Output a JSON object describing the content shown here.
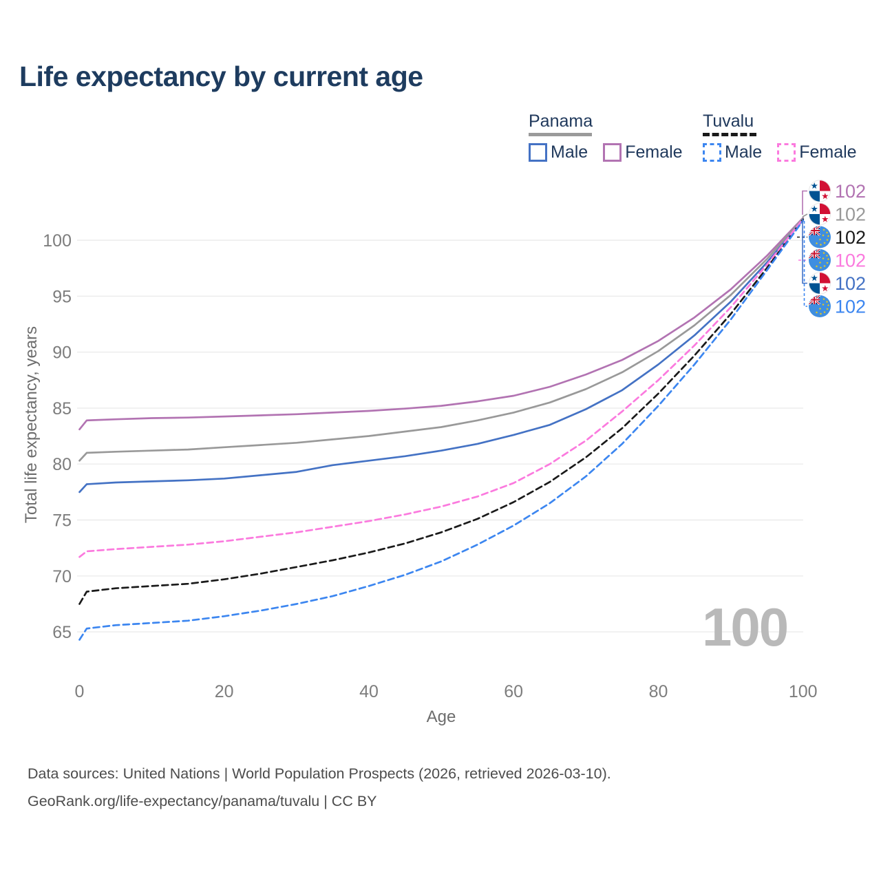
{
  "title": "Life expectancy by current age",
  "legend": {
    "groups": [
      {
        "country": "Panama",
        "line_style": "solid",
        "underline_color": "#9a9a9a",
        "items": [
          {
            "label": "Male",
            "color": "#4472c4"
          },
          {
            "label": "Female",
            "color": "#b273b2"
          }
        ]
      },
      {
        "country": "Tuvalu",
        "line_style": "dashed",
        "underline_color": "#1a1a1a",
        "items": [
          {
            "label": "Male",
            "color": "#3c86f0"
          },
          {
            "label": "Female",
            "color": "#fb7ade"
          }
        ]
      }
    ]
  },
  "chart_data": {
    "type": "line",
    "title": "Life expectancy by current age",
    "xlabel": "Age",
    "ylabel": "Total life expectancy, years",
    "xlim": [
      0,
      100
    ],
    "ylim": [
      63,
      103.5
    ],
    "x_ticks": [
      0,
      20,
      40,
      60,
      80,
      100
    ],
    "y_ticks": [
      65,
      70,
      75,
      80,
      85,
      90,
      95,
      100
    ],
    "grid": "horizontal-only",
    "legend_position": "top-right",
    "ages": [
      0,
      1,
      5,
      10,
      15,
      20,
      25,
      30,
      35,
      40,
      45,
      50,
      55,
      60,
      65,
      70,
      75,
      80,
      85,
      90,
      95,
      100
    ],
    "series": [
      {
        "name": "Panama — Female",
        "country": "Panama",
        "sex": "Female",
        "color": "#b273b2",
        "dashed": false,
        "flag": "panama",
        "end_label": "102",
        "label_row": 0,
        "values": [
          83.1,
          83.9,
          84.0,
          84.1,
          84.15,
          84.25,
          84.35,
          84.45,
          84.6,
          84.75,
          84.95,
          85.2,
          85.6,
          86.1,
          86.9,
          88.0,
          89.3,
          91.0,
          93.1,
          95.6,
          98.6,
          102.0
        ]
      },
      {
        "name": "Panama — Both sexes",
        "country": "Panama",
        "sex": "Both",
        "color": "#999999",
        "dashed": false,
        "flag": "panama",
        "end_label": "102",
        "label_row": 1,
        "values": [
          80.3,
          81.0,
          81.1,
          81.2,
          81.3,
          81.5,
          81.7,
          81.9,
          82.2,
          82.5,
          82.9,
          83.3,
          83.9,
          84.6,
          85.5,
          86.7,
          88.2,
          90.1,
          92.4,
          95.1,
          98.3,
          101.95
        ]
      },
      {
        "name": "Tuvalu — Both sexes",
        "country": "Tuvalu",
        "sex": "Both",
        "color": "#1a1a1a",
        "dashed": true,
        "flag": "tuvalu",
        "end_label": "102",
        "label_row": 2,
        "values": [
          67.5,
          68.6,
          68.9,
          69.1,
          69.3,
          69.7,
          70.2,
          70.8,
          71.4,
          72.1,
          72.9,
          73.9,
          75.1,
          76.6,
          78.4,
          80.6,
          83.2,
          86.3,
          89.7,
          93.4,
          97.5,
          101.85
        ]
      },
      {
        "name": "Tuvalu — Female",
        "country": "Tuvalu",
        "sex": "Female",
        "color": "#fb7ade",
        "dashed": true,
        "flag": "tuvalu",
        "end_label": "102",
        "label_row": 3,
        "values": [
          71.7,
          72.2,
          72.4,
          72.6,
          72.8,
          73.1,
          73.5,
          73.9,
          74.4,
          74.9,
          75.5,
          76.2,
          77.1,
          78.3,
          80.0,
          82.1,
          84.7,
          87.5,
          90.6,
          94.0,
          97.8,
          101.9
        ]
      },
      {
        "name": "Panama — Male",
        "country": "Panama",
        "sex": "Male",
        "color": "#4472c4",
        "dashed": false,
        "flag": "panama",
        "end_label": "102",
        "label_row": 4,
        "values": [
          77.5,
          78.2,
          78.35,
          78.45,
          78.55,
          78.7,
          79.0,
          79.3,
          79.9,
          80.3,
          80.7,
          81.2,
          81.8,
          82.6,
          83.5,
          84.9,
          86.6,
          88.9,
          91.5,
          94.5,
          98.0,
          101.8
        ]
      },
      {
        "name": "Tuvalu — Male",
        "country": "Tuvalu",
        "sex": "Male",
        "color": "#3c86f0",
        "dashed": true,
        "flag": "tuvalu",
        "end_label": "102",
        "label_row": 5,
        "values": [
          64.3,
          65.3,
          65.6,
          65.8,
          66.0,
          66.4,
          66.9,
          67.5,
          68.2,
          69.1,
          70.1,
          71.3,
          72.8,
          74.5,
          76.5,
          78.9,
          81.8,
          85.2,
          88.9,
          92.9,
          97.3,
          101.75
        ]
      }
    ]
  },
  "watermark": "100",
  "footer": {
    "line1": "Data sources: United Nations | World Population Prospects (2026, retrieved 2026-03-10).",
    "line2": "GeoRank.org/life-expectancy/panama/tuvalu | CC BY"
  }
}
